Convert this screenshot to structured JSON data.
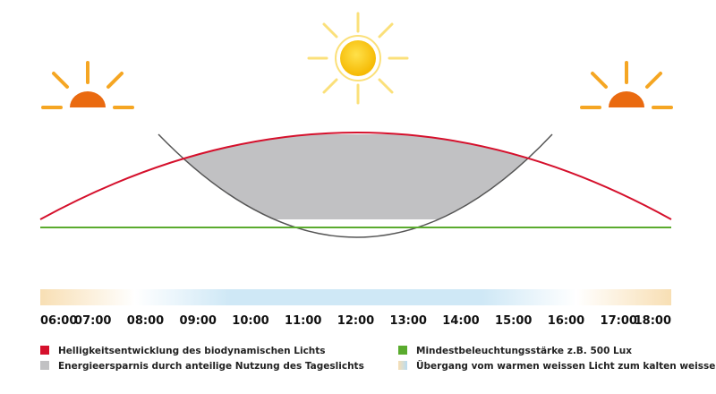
{
  "timeline": {
    "labels": [
      "06:00",
      "07:00",
      "08:00",
      "09:00",
      "10:00",
      "11:00",
      "12:00",
      "13:00",
      "14:00",
      "15:00",
      "16:00",
      "17:00",
      "18:00"
    ]
  },
  "legend": {
    "items": [
      {
        "label": "Helligkeitsentwicklung des biodynamischen Lichts"
      },
      {
        "label": "Energieersparnis durch anteilige Nutzung des Tageslichts"
      },
      {
        "label": "Mindestbeleuchtungsstärke  z.B. 500 Lux"
      },
      {
        "label": "Übergang vom warmen weissen Licht zum kalten weissen Licht"
      }
    ]
  }
}
